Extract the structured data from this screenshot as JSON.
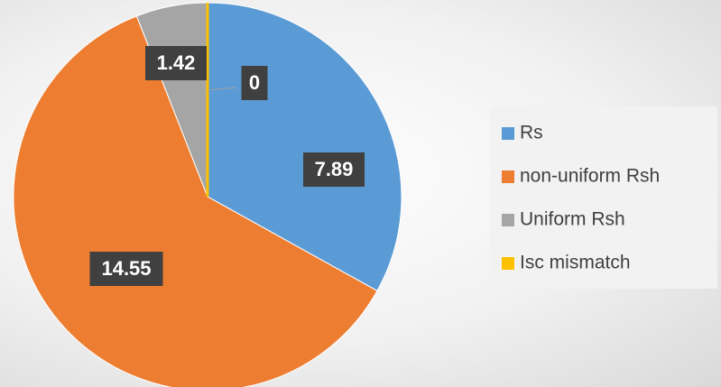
{
  "chart_data": {
    "type": "pie",
    "categories": [
      "Rs",
      "non-uniform Rsh",
      "Uniform Rsh",
      "Isc mismatch"
    ],
    "values": [
      7.89,
      14.55,
      1.42,
      0
    ],
    "colors": [
      "#5b9bd5",
      "#ed7d31",
      "#a5a5a5",
      "#ffc000"
    ],
    "legend": "right"
  }
}
